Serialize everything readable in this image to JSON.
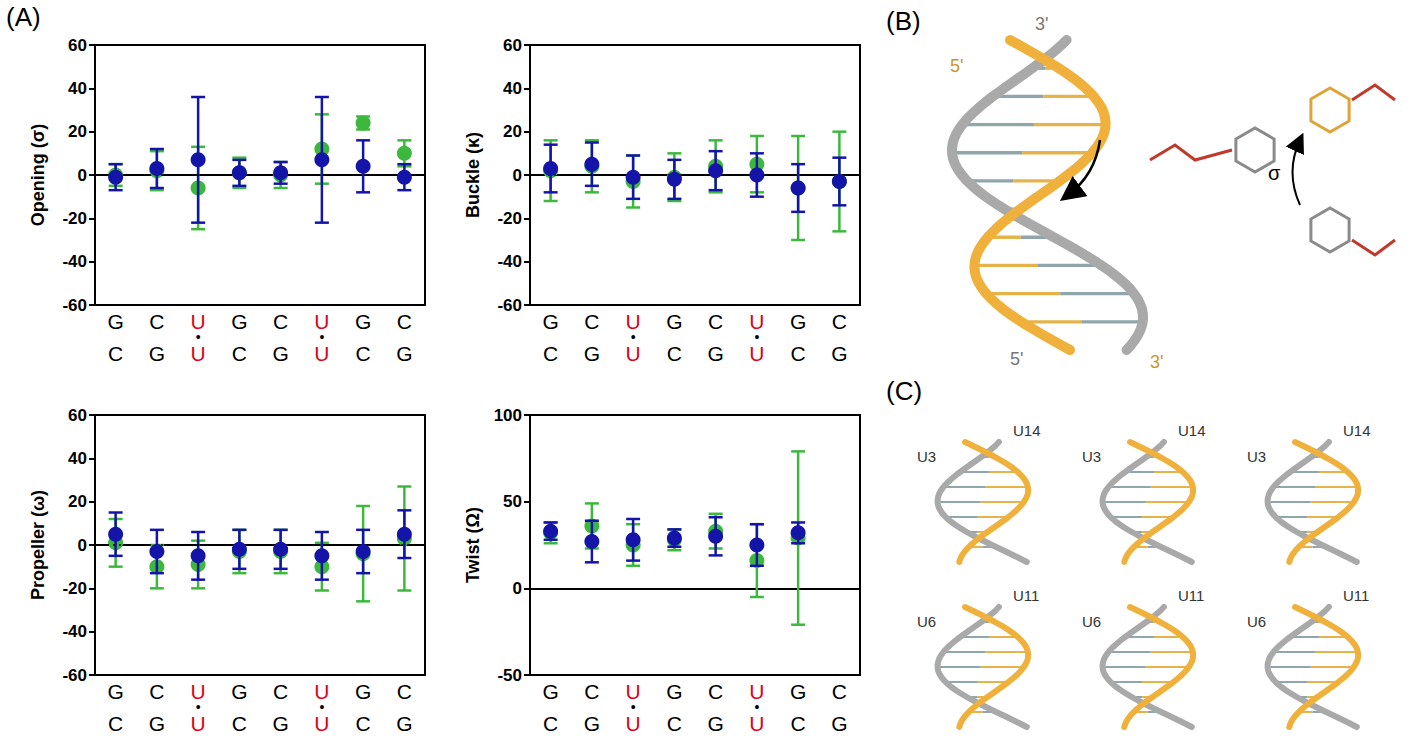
{
  "panel_labels": {
    "A": "(A)",
    "B": "(B)",
    "C": "(C)"
  },
  "chart_data": [
    {
      "type": "scatter",
      "y_label": "Opening (σ)",
      "categories": [
        "G\nC",
        "C\nG",
        "U\n•\nU",
        "G\nC",
        "C\nG",
        "U\n•\nU",
        "G\nC",
        "C\nG"
      ],
      "ylim": [
        -60,
        60
      ],
      "yticks": [
        -60,
        -40,
        -20,
        0,
        20,
        40,
        60
      ],
      "reference_line": 0,
      "grid": false,
      "series": [
        {
          "color": "#3cb83c",
          "values": [
            0,
            2,
            -6,
            1,
            0,
            12,
            24,
            10
          ],
          "errors": [
            5,
            9,
            19,
            7,
            6,
            16,
            3,
            6
          ]
        },
        {
          "color": "#1414a8",
          "values": [
            -1,
            3,
            7,
            1,
            1,
            7,
            4,
            -1
          ],
          "errors": [
            6,
            9,
            29,
            6,
            5,
            29,
            12,
            6
          ]
        }
      ]
    },
    {
      "type": "scatter",
      "y_label": "Buckle (κ)",
      "categories": [
        "G\nC",
        "C\nG",
        "U\n•\nU",
        "G\nC",
        "C\nG",
        "U\n•\nU",
        "G\nC",
        "C\nG"
      ],
      "ylim": [
        -60,
        60
      ],
      "yticks": [
        -60,
        -40,
        -20,
        0,
        20,
        40,
        60
      ],
      "reference_line": 0,
      "grid": false,
      "series": [
        {
          "color": "#3cb83c",
          "values": [
            2,
            4,
            -3,
            -1,
            4,
            5,
            -6,
            -3
          ],
          "errors": [
            14,
            12,
            12,
            11,
            12,
            13,
            24,
            23
          ]
        },
        {
          "color": "#1414a8",
          "values": [
            3,
            5,
            -1,
            -2,
            2,
            0,
            -6,
            -3
          ],
          "errors": [
            11,
            10,
            10,
            9,
            9,
            10,
            11,
            11
          ]
        }
      ]
    },
    {
      "type": "scatter",
      "y_label": "Propeller (ω)",
      "categories": [
        "G\nC",
        "C\nG",
        "U\n•\nU",
        "G\nC",
        "C\nG",
        "U\n•\nU",
        "G\nC",
        "C\nG"
      ],
      "ylim": [
        -60,
        60
      ],
      "yticks": [
        -60,
        -40,
        -20,
        0,
        20,
        40,
        60
      ],
      "reference_line": 0,
      "grid": false,
      "series": [
        {
          "color": "#3cb83c",
          "values": [
            1,
            -10,
            -9,
            -3,
            -3,
            -10,
            -4,
            3
          ],
          "errors": [
            11,
            10,
            11,
            10,
            10,
            11,
            22,
            24
          ]
        },
        {
          "color": "#1414a8",
          "values": [
            5,
            -3,
            -5,
            -2,
            -2,
            -5,
            -3,
            5
          ],
          "errors": [
            10,
            10,
            11,
            9,
            9,
            11,
            10,
            11
          ]
        }
      ]
    },
    {
      "type": "scatter",
      "y_label": "Twist (Ω)",
      "categories": [
        "G\nC",
        "C\nG",
        "U\n•\nU",
        "G\nC",
        "C\nG",
        "U\n•\nU",
        "G\nC",
        "C\nG"
      ],
      "ylim": [
        -50,
        100
      ],
      "yticks": [
        -50,
        0,
        50,
        100
      ],
      "reference_line": 0,
      "grid": false,
      "series": [
        {
          "color": "#3cb83c",
          "values": [
            32,
            36,
            25,
            28,
            33,
            16,
            29,
            null
          ],
          "errors": [
            6,
            13,
            12,
            6,
            10,
            21,
            50,
            null
          ]
        },
        {
          "color": "#1414a8",
          "values": [
            33,
            27,
            28,
            29,
            30,
            25,
            32,
            null
          ],
          "errors": [
            5,
            12,
            12,
            5,
            11,
            12,
            6,
            null
          ]
        }
      ]
    }
  ],
  "diagram_B": {
    "strand_labels": [
      {
        "text": "3'",
        "color": "#777777"
      },
      {
        "text": "5'",
        "color": "#c8962a"
      },
      {
        "text": "5'",
        "color": "#777777"
      },
      {
        "text": "3'",
        "color": "#c8962a"
      }
    ],
    "angle_label": "σ"
  },
  "diagram_C": {
    "rows": [
      {
        "labels": [
          "U3",
          "U14"
        ],
        "copies": 3
      },
      {
        "labels": [
          "U6",
          "U11"
        ],
        "copies": 3
      }
    ]
  }
}
